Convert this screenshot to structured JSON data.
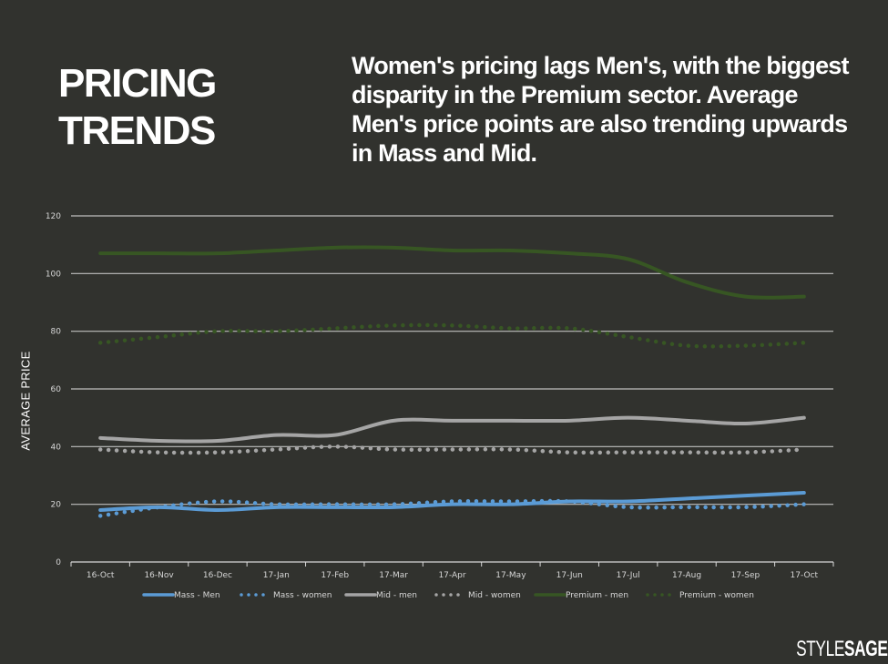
{
  "header": {
    "title_line1": "PRICING",
    "title_line2": "TRENDS",
    "subtitle": "Women's pricing lags Men's, with the biggest disparity in the Premium sector. Average Men's price points are also trending upwards in Mass and Mid."
  },
  "logo": {
    "part1": "STYLE",
    "part2": "SAGE"
  },
  "chart_data": {
    "type": "line",
    "title": "",
    "xlabel": "",
    "ylabel": "AVERAGE PRICE",
    "ylim": [
      0,
      120
    ],
    "yticks": [
      0,
      20,
      40,
      60,
      80,
      100,
      120
    ],
    "grid": true,
    "legend_position": "bottom",
    "categories": [
      "16-Oct",
      "16-Nov",
      "16-Dec",
      "17-Jan",
      "17-Feb",
      "17-Mar",
      "17-Apr",
      "17-May",
      "17-Jun",
      "17-Jul",
      "17-Aug",
      "17-Sep",
      "17-Oct"
    ],
    "series": [
      {
        "name": "Mass - Men",
        "style": "solid",
        "color": "#5b9bd5",
        "values": [
          18,
          19,
          18,
          19,
          19,
          19,
          20,
          20,
          21,
          21,
          22,
          23,
          24
        ]
      },
      {
        "name": "Mass - women",
        "style": "dotted",
        "color": "#5b9bd5",
        "values": [
          16,
          19,
          21,
          20,
          20,
          20,
          21,
          21,
          21,
          19,
          19,
          19,
          20
        ]
      },
      {
        "name": "Mid - men",
        "style": "solid",
        "color": "#a5a5a5",
        "values": [
          43,
          42,
          42,
          44,
          44,
          49,
          49,
          49,
          49,
          50,
          49,
          48,
          50
        ]
      },
      {
        "name": "Mid - women",
        "style": "dotted",
        "color": "#a5a5a5",
        "values": [
          39,
          38,
          38,
          39,
          40,
          39,
          39,
          39,
          38,
          38,
          38,
          38,
          39
        ]
      },
      {
        "name": "Premium - men",
        "style": "solid",
        "color": "#375623",
        "values": [
          107,
          107,
          107,
          108,
          109,
          109,
          108,
          108,
          107,
          105,
          97,
          92,
          92
        ]
      },
      {
        "name": "Premium - women",
        "style": "dotted",
        "color": "#375623",
        "values": [
          76,
          78,
          80,
          80,
          81,
          82,
          82,
          81,
          81,
          78,
          75,
          75,
          76
        ]
      }
    ]
  }
}
